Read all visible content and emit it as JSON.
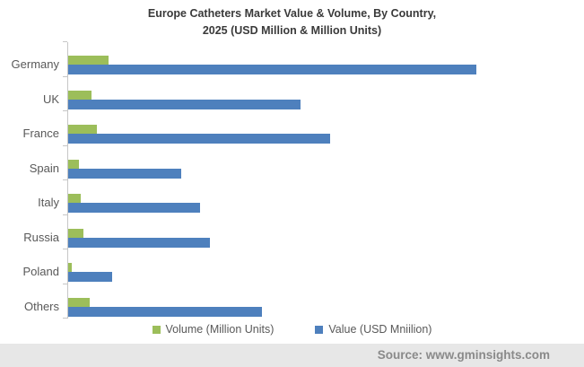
{
  "title": {
    "line1": "Europe Catheters Market Value & Volume, By Country,",
    "line2": "2025 (USD Million & Million Units)"
  },
  "chart_data": {
    "type": "bar",
    "orientation": "horizontal",
    "grouped": true,
    "title": "Europe Catheters Market Value & Volume, By Country, 2025 (USD Million & Million Units)",
    "categories": [
      "Germany",
      "UK",
      "France",
      "Spain",
      "Italy",
      "Russia",
      "Poland",
      "Others"
    ],
    "series": [
      {
        "name": "Volume (Million Units)",
        "color": "#9cbe5a",
        "values": [
          45,
          26,
          32,
          12,
          14,
          17,
          4,
          24
        ]
      },
      {
        "name": "Value (USD Mniilion)",
        "color": "#4e80bd",
        "values": [
          455,
          259,
          292,
          126,
          147,
          158,
          49,
          216
        ]
      }
    ],
    "value_units": "proportional bar lengths (x-axis is unlabeled in the figure)",
    "xlim": [
      0,
      555
    ],
    "grid": false,
    "legend_position": "bottom",
    "axis_color": "#c6c6c6"
  },
  "legend": {
    "items": [
      {
        "label": "Volume (Million Units)",
        "color": "#9cbe5a"
      },
      {
        "label": "Value (USD Mniilion)",
        "color": "#4e80bd"
      }
    ]
  },
  "footer": {
    "source": "Source: www.gminsights.com"
  }
}
